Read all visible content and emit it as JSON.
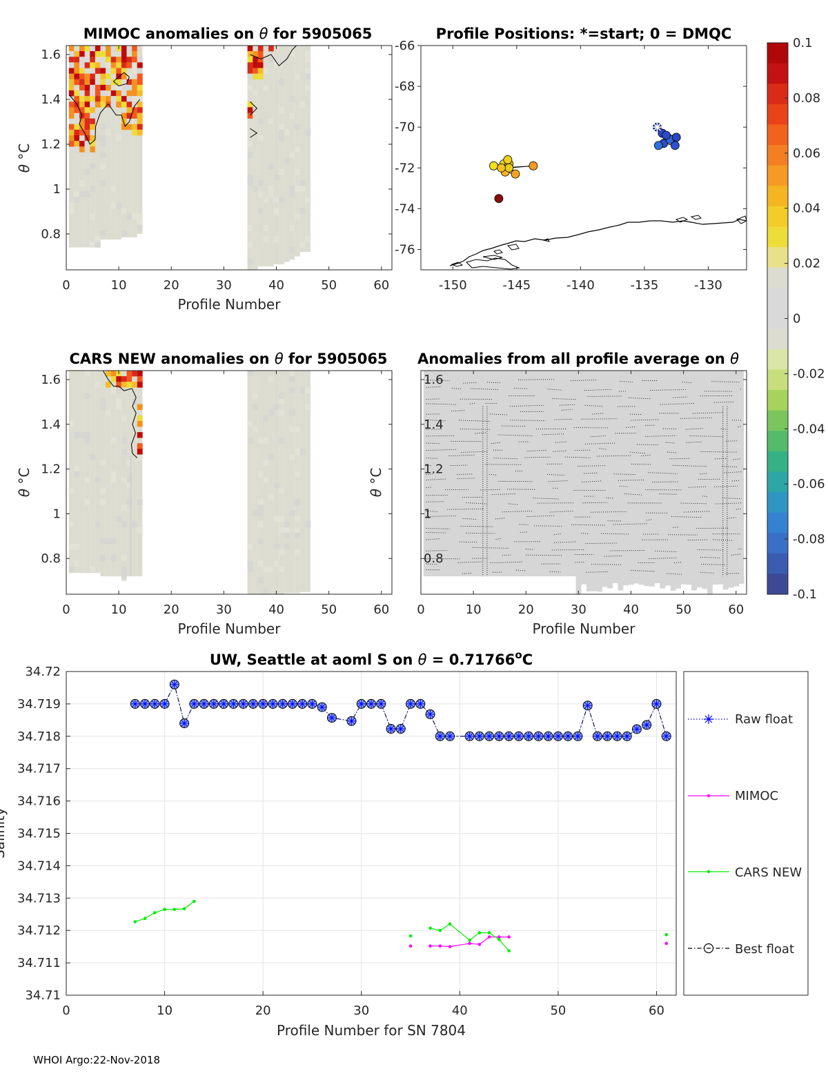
{
  "footer": "WHOI Argo:22-Nov-2018",
  "colormap": [
    "#3f4a9c",
    "#3a6fc4",
    "#2f99b0",
    "#3fae7a",
    "#8cc35a",
    "#c9dd8a",
    "#dfdcc8",
    "#d9d9d9",
    "#eedc3a",
    "#f4bc2a",
    "#f5901f",
    "#f2571d",
    "#d92a1a",
    "#c00a0a"
  ],
  "chart_data": [
    {
      "id": "mimoc",
      "type": "heatmap",
      "title_prefix": "MIMOC anomalies on ",
      "title_sym": "θ",
      "title_suffix": "  for 5905065",
      "xlabel": "Profile Number",
      "ylabel_sym": "θ",
      "ylabel_unit": "°C",
      "xlim": [
        0,
        62
      ],
      "ylim": [
        0.64,
        1.64
      ],
      "xticks": [
        0,
        10,
        20,
        30,
        40,
        50,
        60
      ],
      "yticks": [
        0.8,
        1,
        1.2,
        1.4,
        1.6
      ],
      "column_groups": [
        {
          "from": 1,
          "to": 14,
          "bottoms": [
            0.74,
            0.74,
            0.74,
            0.74,
            0.74,
            0.74,
            0.775,
            0.775,
            0.775,
            0.775,
            0.785,
            0.785,
            0.785,
            0.8
          ]
        },
        {
          "from": 35,
          "to": 46,
          "bottoms": [
            0.64,
            0.64,
            0.655,
            0.655,
            0.655,
            0.665,
            0.665,
            0.675,
            0.685,
            0.7,
            0.72,
            0.72
          ]
        }
      ],
      "hot_region": "top"
    },
    {
      "id": "positions",
      "type": "scatter",
      "title": "Profile Positions: *=start; 0 = DMQC",
      "xlim": [
        -152.5,
        -127
      ],
      "ylim": [
        -77,
        -66
      ],
      "xticks": [
        -150,
        -145,
        -140,
        -135,
        -130
      ],
      "yticks": [
        -66,
        -68,
        -70,
        -72,
        -74,
        -76
      ],
      "cluster_east": [
        [
          -134.0,
          -70.0
        ],
        [
          -133.6,
          -70.3
        ],
        [
          -133.2,
          -70.5
        ],
        [
          -132.8,
          -70.6
        ],
        [
          -133.5,
          -70.8
        ],
        [
          -132.6,
          -70.9
        ],
        [
          -133.0,
          -70.6
        ],
        [
          -133.9,
          -70.9
        ],
        [
          -132.5,
          -70.5
        ],
        [
          -133.3,
          -70.4
        ]
      ],
      "cluster_west": [
        [
          -146.8,
          -71.9
        ],
        [
          -146.0,
          -71.8
        ],
        [
          -145.6,
          -71.8
        ],
        [
          -145.1,
          -72.3
        ],
        [
          -145.9,
          -72.2
        ],
        [
          -145.6,
          -72.0
        ],
        [
          -143.7,
          -71.9
        ],
        [
          -146.2,
          -72.0
        ],
        [
          -145.7,
          -71.6
        ]
      ],
      "red_point": [
        -146.4,
        -73.5
      ],
      "start_point": [
        -134.0,
        -70.0
      ]
    },
    {
      "id": "colorbar",
      "type": "colorbar",
      "ticks": [
        "0.1",
        "0.08",
        "0.06",
        "0.04",
        "0.02",
        "0",
        "-0.02",
        "-0.04",
        "-0.06",
        "-0.08",
        "-0.1"
      ]
    },
    {
      "id": "cars",
      "type": "heatmap",
      "title_prefix": "CARS NEW anomalies on ",
      "title_sym": "θ",
      "title_suffix": " for 5905065",
      "xlabel": "Profile Number",
      "ylabel_sym": "θ",
      "ylabel_unit": "°C",
      "xlim": [
        0,
        62
      ],
      "ylim": [
        0.64,
        1.64
      ],
      "xticks": [
        0,
        10,
        20,
        30,
        40,
        50,
        60
      ],
      "yticks": [
        0.8,
        1,
        1.2,
        1.4,
        1.6
      ],
      "column_groups": [
        {
          "from": 1,
          "to": 14,
          "bottoms": [
            0.735,
            0.735,
            0.735,
            0.735,
            0.735,
            0.735,
            0.72,
            0.72,
            0.72,
            0.72,
            0.7,
            0.72,
            0.72,
            0.72
          ]
        },
        {
          "from": 35,
          "to": 46,
          "bottoms": [
            0.64,
            0.64,
            0.64,
            0.64,
            0.64,
            0.64,
            0.64,
            0.645,
            0.645,
            0.645,
            0.65,
            0.65
          ]
        }
      ],
      "hot_region": "corner"
    },
    {
      "id": "allavg",
      "type": "heatmap",
      "title_prefix": "Anomalies from all profile average on ",
      "title_sym": "θ",
      "title_suffix": "",
      "xlabel": "Profile Number",
      "ylabel_sym": "θ",
      "ylabel_unit": "°C",
      "xlim": [
        0,
        62
      ],
      "ylim": [
        0.64,
        1.64
      ],
      "xticks": [
        0,
        10,
        20,
        30,
        40,
        50,
        60
      ],
      "yticks": [
        0.8,
        1,
        1.2,
        1.4,
        1.6
      ],
      "fill_from": 1,
      "fill_to": 61,
      "fill_bottom": 0.72,
      "fill_top": 1.62
    },
    {
      "id": "salinity",
      "type": "line",
      "title_prefix": "UW, Seattle at aoml S on ",
      "title_sym": "θ",
      "title_suffix": " = 0.71766",
      "title_sup": "o",
      "title_end": "C",
      "xlabel": "Profile Number for SN 7804",
      "ylabel": "Salinity",
      "xlim": [
        0,
        62
      ],
      "ylim": [
        34.71,
        34.72
      ],
      "xticks": [
        0,
        10,
        20,
        30,
        40,
        50,
        60
      ],
      "yticks": [
        "34.71",
        "34.711",
        "34.712",
        "34.713",
        "34.714",
        "34.715",
        "34.716",
        "34.717",
        "34.718",
        "34.719",
        "34.72"
      ],
      "series": [
        {
          "name": "Raw float",
          "x": [
            7,
            8,
            9,
            10,
            11,
            12,
            13,
            14,
            15,
            16,
            17,
            18,
            19,
            20,
            21,
            22,
            23,
            24,
            25,
            26,
            27,
            29,
            30,
            31,
            32,
            33,
            34,
            35,
            36,
            37,
            38,
            39,
            41,
            42,
            43,
            44,
            45,
            46,
            47,
            48,
            49,
            50,
            51,
            52,
            53,
            54,
            55,
            56,
            57,
            58,
            59,
            60,
            61
          ],
          "y": [
            34.719,
            34.719,
            34.719,
            34.719,
            34.7196,
            34.7184,
            34.719,
            34.719,
            34.719,
            34.719,
            34.719,
            34.719,
            34.719,
            34.719,
            34.719,
            34.719,
            34.719,
            34.719,
            34.719,
            34.7189,
            34.71857,
            34.71847,
            34.719,
            34.719,
            34.719,
            34.71823,
            34.71823,
            34.719,
            34.719,
            34.71868,
            34.718,
            34.718,
            34.718,
            34.718,
            34.718,
            34.718,
            34.718,
            34.718,
            34.718,
            34.718,
            34.718,
            34.718,
            34.718,
            34.718,
            34.71895,
            34.718,
            34.718,
            34.718,
            34.718,
            34.71822,
            34.71835,
            34.719,
            34.718
          ]
        },
        {
          "name": "MIMOC",
          "segments": [
            {
              "x": [
                35
              ],
              "y": [
                34.71152
              ]
            },
            {
              "x": [
                37,
                38,
                39,
                41,
                42,
                43,
                44,
                45
              ],
              "y": [
                34.71152,
                34.71152,
                34.7115,
                34.7116,
                34.71157,
                34.7118,
                34.7118,
                34.7118
              ]
            },
            {
              "x": [
                61
              ],
              "y": [
                34.7116
              ]
            }
          ]
        },
        {
          "name": "CARS NEW",
          "segments": [
            {
              "x": [
                7,
                8,
                9,
                10,
                11,
                12,
                13
              ],
              "y": [
                34.71227,
                34.71237,
                34.71255,
                34.71265,
                34.71265,
                34.71267,
                34.7129
              ]
            },
            {
              "x": [
                35
              ],
              "y": [
                34.71183
              ]
            },
            {
              "x": [
                37,
                38,
                39,
                41,
                42,
                43,
                44,
                45
              ],
              "y": [
                34.71207,
                34.712,
                34.7122,
                34.7117,
                34.71193,
                34.71193,
                34.71172,
                34.71137
              ]
            },
            {
              "x": [
                61
              ],
              "y": [
                34.71187
              ]
            }
          ]
        },
        {
          "name": "Best float"
        }
      ]
    }
  ]
}
